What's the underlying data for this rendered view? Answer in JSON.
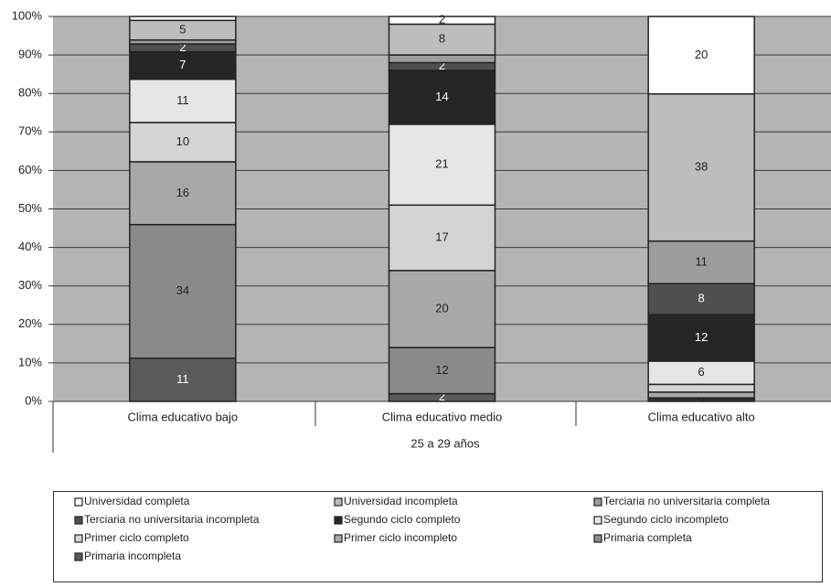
{
  "chart_data": {
    "type": "bar100",
    "categories": [
      "Clima educativo bajo",
      "Clima educativo medio",
      "Clima educativo alto"
    ],
    "group_label": "25 a 29 años",
    "ylim": [
      0,
      100
    ],
    "yticks": [
      {
        "value": 0,
        "label": "0%"
      },
      {
        "value": 10,
        "label": "10%"
      },
      {
        "value": 20,
        "label": "20%"
      },
      {
        "value": 30,
        "label": "30%"
      },
      {
        "value": 40,
        "label": "40%"
      },
      {
        "value": 50,
        "label": "50%"
      },
      {
        "value": 60,
        "label": "60%"
      },
      {
        "value": 70,
        "label": "70%"
      },
      {
        "value": 80,
        "label": "80%"
      },
      {
        "value": 90,
        "label": "90%"
      },
      {
        "value": 100,
        "label": "100%"
      }
    ],
    "grid": true,
    "series": [
      {
        "name": "Universidad completa",
        "color": "#ffffff",
        "values": [
          1,
          2,
          20
        ],
        "value_labels": [
          null,
          "2",
          "20"
        ]
      },
      {
        "name": "Universidad incompleta",
        "color": "#bdbdbd",
        "values": [
          5,
          8,
          38
        ],
        "value_labels": [
          "5",
          "8",
          "38"
        ]
      },
      {
        "name": "Terciaria no universitaria completa",
        "color": "#9c9c9c",
        "values": [
          1,
          2,
          11
        ],
        "value_labels": [
          null,
          null,
          "11"
        ]
      },
      {
        "name": "Terciaria no universitaria incompleta",
        "color": "#4f4f4f",
        "values": [
          2,
          2,
          8
        ],
        "value_labels": [
          "2",
          "2",
          "8"
        ]
      },
      {
        "name": "Segundo ciclo completo",
        "color": "#262626",
        "values": [
          7,
          14,
          12
        ],
        "value_labels": [
          "7",
          "14",
          "12"
        ]
      },
      {
        "name": "Segundo ciclo incompleto",
        "color": "#e6e6e6",
        "values": [
          11,
          21,
          6
        ],
        "value_labels": [
          "11",
          "21",
          "6"
        ]
      },
      {
        "name": "Primer ciclo completo",
        "color": "#d4d4d4",
        "values": [
          10,
          17,
          2
        ],
        "value_labels": [
          "10",
          "17",
          null
        ]
      },
      {
        "name": "Primer ciclo incompleto",
        "color": "#a8a8a8",
        "values": [
          16,
          20,
          1.5
        ],
        "value_labels": [
          "16",
          "20",
          null
        ]
      },
      {
        "name": "Primaria completa",
        "color": "#8a8a8a",
        "values": [
          34,
          12,
          0.4
        ],
        "value_labels": [
          "34",
          "12",
          "0"
        ]
      },
      {
        "name": "Primaria incompleta",
        "color": "#5a5a5a",
        "values": [
          11,
          2,
          0.5
        ],
        "value_labels": [
          "11",
          "2",
          null
        ]
      }
    ]
  }
}
